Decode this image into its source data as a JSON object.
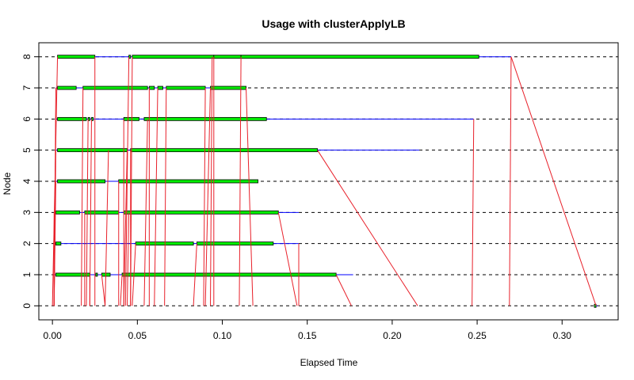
{
  "chart_data": {
    "type": "gantt",
    "title": "Usage with clusterApplyLB",
    "xlabel": "Elapsed Time",
    "ylabel": "Node",
    "xlim": [
      -0.008,
      0.333
    ],
    "ylim": [
      -0.45,
      8.45
    ],
    "x_ticks": [
      0.0,
      0.05,
      0.1,
      0.15,
      0.2,
      0.25,
      0.3
    ],
    "x_tick_labels": [
      "0.00",
      "0.05",
      "0.10",
      "0.15",
      "0.20",
      "0.25",
      "0.30"
    ],
    "y_ticks": [
      0,
      1,
      2,
      3,
      4,
      5,
      6,
      7,
      8
    ],
    "y_tick_labels": [
      "0",
      "1",
      "2",
      "3",
      "4",
      "5",
      "6",
      "7",
      "8"
    ],
    "grid": "horizontal-dashed",
    "colors": {
      "compute": "#00ee00",
      "comm": "#0000ff",
      "send": "#e8202a",
      "grid": "#000000"
    },
    "node_spans": [
      {
        "node": 0,
        "start": 0.319,
        "end": 0.321
      },
      {
        "node": 1,
        "start": 0.001,
        "end": 0.177
      },
      {
        "node": 2,
        "start": 0.001,
        "end": 0.145
      },
      {
        "node": 3,
        "start": 0.001,
        "end": 0.145
      },
      {
        "node": 4,
        "start": 0.002,
        "end": 0.121
      },
      {
        "node": 5,
        "start": 0.002,
        "end": 0.216
      },
      {
        "node": 6,
        "start": 0.002,
        "end": 0.248
      },
      {
        "node": 7,
        "start": 0.002,
        "end": 0.114
      },
      {
        "node": 8,
        "start": 0.003,
        "end": 0.27
      }
    ],
    "tasks": [
      {
        "node": 0,
        "start": 0.319,
        "end": 0.32
      },
      {
        "node": 1,
        "start": 0.002,
        "end": 0.022
      },
      {
        "node": 1,
        "start": 0.0255,
        "end": 0.0265
      },
      {
        "node": 1,
        "start": 0.029,
        "end": 0.034
      },
      {
        "node": 1,
        "start": 0.041,
        "end": 0.167
      },
      {
        "node": 2,
        "start": 0.002,
        "end": 0.005
      },
      {
        "node": 2,
        "start": 0.049,
        "end": 0.083
      },
      {
        "node": 2,
        "start": 0.085,
        "end": 0.13
      },
      {
        "node": 3,
        "start": 0.002,
        "end": 0.016
      },
      {
        "node": 3,
        "start": 0.019,
        "end": 0.039
      },
      {
        "node": 3,
        "start": 0.042,
        "end": 0.133
      },
      {
        "node": 4,
        "start": 0.003,
        "end": 0.031
      },
      {
        "node": 4,
        "start": 0.039,
        "end": 0.121
      },
      {
        "node": 5,
        "start": 0.003,
        "end": 0.044
      },
      {
        "node": 5,
        "start": 0.046,
        "end": 0.156
      },
      {
        "node": 6,
        "start": 0.003,
        "end": 0.02
      },
      {
        "node": 6,
        "start": 0.021,
        "end": 0.022
      },
      {
        "node": 6,
        "start": 0.023,
        "end": 0.024
      },
      {
        "node": 6,
        "start": 0.042,
        "end": 0.051
      },
      {
        "node": 6,
        "start": 0.054,
        "end": 0.126
      },
      {
        "node": 7,
        "start": 0.003,
        "end": 0.014
      },
      {
        "node": 7,
        "start": 0.018,
        "end": 0.056
      },
      {
        "node": 7,
        "start": 0.057,
        "end": 0.06
      },
      {
        "node": 7,
        "start": 0.062,
        "end": 0.065
      },
      {
        "node": 7,
        "start": 0.067,
        "end": 0.09
      },
      {
        "node": 7,
        "start": 0.093,
        "end": 0.114
      },
      {
        "node": 8,
        "start": 0.003,
        "end": 0.025
      },
      {
        "node": 8,
        "start": 0.045,
        "end": 0.046
      },
      {
        "node": 8,
        "start": 0.047,
        "end": 0.095
      },
      {
        "node": 8,
        "start": 0.095,
        "end": 0.111
      },
      {
        "node": 8,
        "start": 0.111,
        "end": 0.251
      }
    ],
    "sends": [
      [
        0.0,
        0,
        0.003,
        8
      ],
      [
        0.001,
        0,
        0.002,
        7
      ],
      [
        0.001,
        0,
        0.002,
        6
      ],
      [
        0.001,
        0,
        0.002,
        5
      ],
      [
        0.001,
        0,
        0.002,
        4
      ],
      [
        0.001,
        0,
        0.001,
        3
      ],
      [
        0.001,
        0,
        0.001,
        2
      ],
      [
        0.001,
        0,
        0.001,
        1
      ],
      [
        0.017,
        0,
        0.018,
        7
      ],
      [
        0.019,
        0,
        0.019,
        3
      ],
      [
        0.02,
        0,
        0.021,
        6
      ],
      [
        0.022,
        0,
        0.023,
        6
      ],
      [
        0.022,
        0,
        0.022,
        1
      ],
      [
        0.025,
        0,
        0.025,
        8
      ],
      [
        0.031,
        0,
        0.029,
        1
      ],
      [
        0.031,
        0,
        0.033,
        5
      ],
      [
        0.039,
        0,
        0.039,
        4
      ],
      [
        0.04,
        0,
        0.041,
        1
      ],
      [
        0.042,
        0,
        0.042,
        6
      ],
      [
        0.042,
        0,
        0.044,
        5
      ],
      [
        0.043,
        0,
        0.045,
        8
      ],
      [
        0.044,
        0,
        0.045,
        3
      ],
      [
        0.046,
        0,
        0.046,
        5
      ],
      [
        0.046,
        0,
        0.047,
        8
      ],
      [
        0.047,
        0,
        0.049,
        2
      ],
      [
        0.054,
        0,
        0.056,
        6
      ],
      [
        0.057,
        0,
        0.057,
        7
      ],
      [
        0.06,
        0,
        0.062,
        7
      ],
      [
        0.066,
        0,
        0.067,
        7
      ],
      [
        0.083,
        0,
        0.085,
        2
      ],
      [
        0.089,
        0,
        0.09,
        7
      ],
      [
        0.09,
        0,
        0.093,
        7
      ],
      [
        0.093,
        0,
        0.094,
        8
      ],
      [
        0.095,
        0,
        0.095,
        8
      ],
      [
        0.11,
        0,
        0.111,
        8
      ],
      [
        0.118,
        0,
        0.114,
        7
      ],
      [
        0.144,
        0,
        0.133,
        3
      ],
      [
        0.145,
        0,
        0.145,
        2
      ],
      [
        0.176,
        0,
        0.167,
        1
      ],
      [
        0.215,
        0,
        0.156,
        5
      ],
      [
        0.247,
        0,
        0.248,
        6
      ],
      [
        0.269,
        0,
        0.27,
        8
      ],
      [
        0.32,
        0,
        0.27,
        8
      ]
    ]
  }
}
